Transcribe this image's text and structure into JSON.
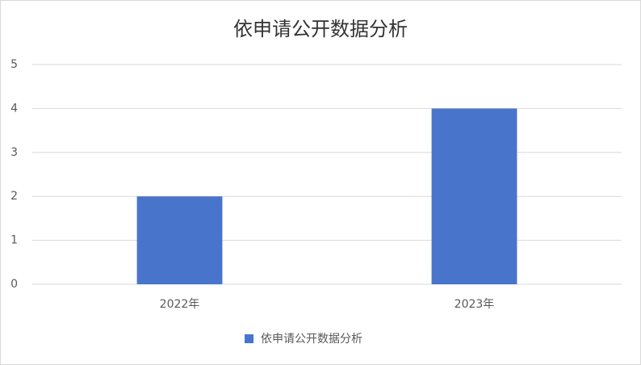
{
  "chart_data": {
    "type": "bar",
    "title": "依申请公开数据分析",
    "categories": [
      "2022年",
      "2023年"
    ],
    "series": [
      {
        "name": "依申请公开数据分析",
        "color": "#4874cb",
        "values": [
          2,
          4
        ]
      }
    ],
    "ylim": [
      0,
      5
    ],
    "yticks": [
      0,
      1,
      2,
      3,
      4,
      5
    ],
    "grid": true,
    "legend": "bottom"
  }
}
